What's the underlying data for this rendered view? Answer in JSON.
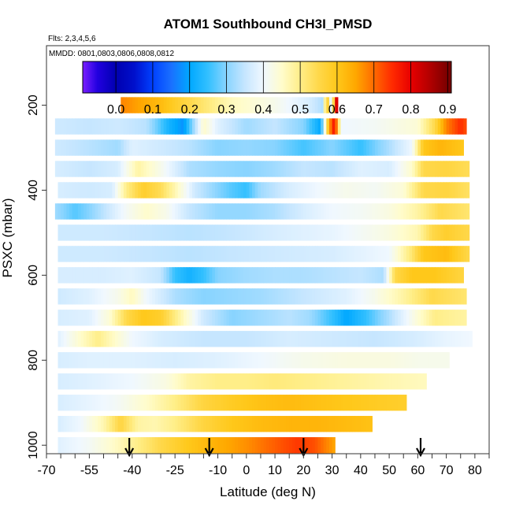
{
  "chart_data": {
    "type": "heatmap",
    "title": "ATOM1 Southbound CH3I_PMSD",
    "subtitle_flights": "Flts: 2,3,4,5,6",
    "subtitle_dates": "MMDD: 0801,0803,0806,0808,0812",
    "xlabel": "Latitude (deg N)",
    "ylabel": "PSXC (mbar)",
    "xlim": [
      -70,
      85
    ],
    "ylim": [
      1020,
      60
    ],
    "x_ticks": [
      -70,
      -55,
      -40,
      -25,
      -10,
      0,
      10,
      20,
      30,
      40,
      50,
      60,
      70,
      80
    ],
    "x_tick_labels": [
      "-70",
      "-55",
      "-40",
      "-25",
      "-10",
      "0",
      "10",
      "20",
      "30",
      "40",
      "50",
      "60",
      "70",
      "80"
    ],
    "y_ticks": [
      200,
      400,
      600,
      800,
      1000
    ],
    "y_tick_labels": [
      "200",
      "400",
      "600",
      "800",
      "1000"
    ],
    "colorbar": {
      "range": [
        -0.09,
        0.91
      ],
      "ticks": [
        0.0,
        0.1,
        0.2,
        0.3,
        0.4,
        0.5,
        0.6,
        0.7,
        0.8,
        0.9
      ],
      "tick_labels": [
        "0.0",
        "0.1",
        "0.2",
        "0.3",
        "0.4",
        "0.5",
        "0.6",
        "0.7",
        "0.8",
        "0.9"
      ],
      "stops": [
        [
          -0.09,
          "#7a1fff"
        ],
        [
          -0.05,
          "#2200e0"
        ],
        [
          0.0,
          "#0000b0"
        ],
        [
          0.05,
          "#0010cc"
        ],
        [
          0.1,
          "#0040ff"
        ],
        [
          0.15,
          "#1a70ff"
        ],
        [
          0.2,
          "#00a8ff"
        ],
        [
          0.25,
          "#33c0ff"
        ],
        [
          0.3,
          "#88d4ff"
        ],
        [
          0.35,
          "#c6e6ff"
        ],
        [
          0.4,
          "#f0f8ff"
        ],
        [
          0.45,
          "#fffccc"
        ],
        [
          0.5,
          "#ffee88"
        ],
        [
          0.55,
          "#ffd84a"
        ],
        [
          0.6,
          "#ffc81a"
        ],
        [
          0.65,
          "#ffa800"
        ],
        [
          0.7,
          "#ff6a00"
        ],
        [
          0.75,
          "#ff2a00"
        ],
        [
          0.8,
          "#e80000"
        ],
        [
          0.85,
          "#b40000"
        ],
        [
          0.9,
          "#7a0000"
        ]
      ]
    },
    "arrows_latitude": [
      -41,
      -13,
      20,
      61
    ],
    "bands": [
      {
        "p": 200,
        "x0": -44,
        "x1": 32,
        "pts": [
          [
            -44,
            0.68
          ],
          [
            -30,
            0.62
          ],
          [
            -20,
            0.55
          ],
          [
            -5,
            0.46
          ],
          [
            10,
            0.42
          ],
          [
            22,
            0.37
          ],
          [
            27,
            0.33
          ],
          [
            28,
            0.65
          ],
          [
            30,
            0.3
          ],
          [
            31,
            0.8
          ],
          [
            32,
            0.82
          ]
        ]
      },
      {
        "p": 250,
        "x0": -67,
        "x1": 77,
        "pts": [
          [
            -67,
            0.36
          ],
          [
            -55,
            0.35
          ],
          [
            -45,
            0.36
          ],
          [
            -35,
            0.34
          ],
          [
            -27,
            0.22
          ],
          [
            -22,
            0.18
          ],
          [
            -15,
            0.45
          ],
          [
            -10,
            0.38
          ],
          [
            0,
            0.32
          ],
          [
            10,
            0.35
          ],
          [
            20,
            0.3
          ],
          [
            26,
            0.2
          ],
          [
            29,
            0.65
          ],
          [
            31,
            0.8
          ],
          [
            33,
            0.4
          ],
          [
            45,
            0.41
          ],
          [
            60,
            0.44
          ],
          [
            66,
            0.55
          ],
          [
            70,
            0.68
          ],
          [
            75,
            0.75
          ],
          [
            77,
            0.72
          ]
        ]
      },
      {
        "p": 300,
        "x0": -67,
        "x1": 76,
        "pts": [
          [
            -67,
            0.36
          ],
          [
            -55,
            0.34
          ],
          [
            -45,
            0.32
          ],
          [
            -40,
            0.38
          ],
          [
            -30,
            0.36
          ],
          [
            -20,
            0.34
          ],
          [
            -10,
            0.3
          ],
          [
            0,
            0.31
          ],
          [
            10,
            0.3
          ],
          [
            20,
            0.26
          ],
          [
            30,
            0.3
          ],
          [
            40,
            0.25
          ],
          [
            50,
            0.33
          ],
          [
            58,
            0.4
          ],
          [
            62,
            0.6
          ],
          [
            68,
            0.63
          ],
          [
            76,
            0.6
          ]
        ]
      },
      {
        "p": 350,
        "x0": -67,
        "x1": 78,
        "pts": [
          [
            -67,
            0.37
          ],
          [
            -55,
            0.35
          ],
          [
            -45,
            0.37
          ],
          [
            -38,
            0.48
          ],
          [
            -30,
            0.42
          ],
          [
            -20,
            0.33
          ],
          [
            -10,
            0.31
          ],
          [
            0,
            0.3
          ],
          [
            10,
            0.32
          ],
          [
            20,
            0.35
          ],
          [
            30,
            0.34
          ],
          [
            40,
            0.38
          ],
          [
            50,
            0.37
          ],
          [
            58,
            0.45
          ],
          [
            62,
            0.55
          ],
          [
            70,
            0.56
          ],
          [
            78,
            0.54
          ]
        ]
      },
      {
        "p": 400,
        "x0": -66,
        "x1": 78,
        "pts": [
          [
            -66,
            0.37
          ],
          [
            -55,
            0.36
          ],
          [
            -47,
            0.37
          ],
          [
            -42,
            0.5
          ],
          [
            -36,
            0.58
          ],
          [
            -30,
            0.54
          ],
          [
            -25,
            0.47
          ],
          [
            -18,
            0.36
          ],
          [
            -10,
            0.3
          ],
          [
            -5,
            0.27
          ],
          [
            0,
            0.25
          ],
          [
            5,
            0.32
          ],
          [
            15,
            0.37
          ],
          [
            25,
            0.4
          ],
          [
            35,
            0.42
          ],
          [
            45,
            0.41
          ],
          [
            55,
            0.44
          ],
          [
            62,
            0.55
          ],
          [
            70,
            0.56
          ],
          [
            78,
            0.53
          ]
        ]
      },
      {
        "p": 450,
        "x0": -67,
        "x1": 78,
        "pts": [
          [
            -67,
            0.32
          ],
          [
            -60,
            0.27
          ],
          [
            -55,
            0.3
          ],
          [
            -48,
            0.36
          ],
          [
            -42,
            0.41
          ],
          [
            -35,
            0.45
          ],
          [
            -28,
            0.42
          ],
          [
            -20,
            0.35
          ],
          [
            -10,
            0.31
          ],
          [
            0,
            0.31
          ],
          [
            10,
            0.33
          ],
          [
            20,
            0.37
          ],
          [
            30,
            0.4
          ],
          [
            40,
            0.41
          ],
          [
            50,
            0.43
          ],
          [
            60,
            0.48
          ],
          [
            68,
            0.55
          ],
          [
            78,
            0.52
          ]
        ]
      },
      {
        "p": 500,
        "x0": -66,
        "x1": 78,
        "pts": [
          [
            -66,
            0.36
          ],
          [
            -50,
            0.36
          ],
          [
            -35,
            0.35
          ],
          [
            -20,
            0.34
          ],
          [
            -5,
            0.35
          ],
          [
            10,
            0.37
          ],
          [
            30,
            0.39
          ],
          [
            50,
            0.43
          ],
          [
            60,
            0.47
          ],
          [
            65,
            0.55
          ],
          [
            70,
            0.58
          ],
          [
            78,
            0.55
          ]
        ]
      },
      {
        "p": 550,
        "x0": -66,
        "x1": 78,
        "pts": [
          [
            -66,
            0.36
          ],
          [
            -50,
            0.36
          ],
          [
            -35,
            0.35
          ],
          [
            -20,
            0.34
          ],
          [
            -5,
            0.35
          ],
          [
            10,
            0.36
          ],
          [
            30,
            0.37
          ],
          [
            50,
            0.4
          ],
          [
            58,
            0.52
          ],
          [
            62,
            0.6
          ],
          [
            70,
            0.62
          ],
          [
            78,
            0.55
          ]
        ]
      },
      {
        "p": 600,
        "x0": -66,
        "x1": 76,
        "pts": [
          [
            -66,
            0.37
          ],
          [
            -50,
            0.37
          ],
          [
            -40,
            0.38
          ],
          [
            -30,
            0.35
          ],
          [
            -25,
            0.25
          ],
          [
            -20,
            0.22
          ],
          [
            -15,
            0.25
          ],
          [
            -10,
            0.3
          ],
          [
            0,
            0.32
          ],
          [
            10,
            0.33
          ],
          [
            20,
            0.33
          ],
          [
            30,
            0.34
          ],
          [
            40,
            0.35
          ],
          [
            48,
            0.33
          ],
          [
            52,
            0.55
          ],
          [
            58,
            0.6
          ],
          [
            66,
            0.6
          ],
          [
            76,
            0.56
          ]
        ]
      },
      {
        "p": 650,
        "x0": -66,
        "x1": 77,
        "pts": [
          [
            -66,
            0.36
          ],
          [
            -55,
            0.38
          ],
          [
            -45,
            0.42
          ],
          [
            -40,
            0.46
          ],
          [
            -35,
            0.4
          ],
          [
            -25,
            0.33
          ],
          [
            -15,
            0.3
          ],
          [
            -5,
            0.31
          ],
          [
            5,
            0.32
          ],
          [
            20,
            0.35
          ],
          [
            35,
            0.38
          ],
          [
            45,
            0.42
          ],
          [
            55,
            0.48
          ],
          [
            65,
            0.55
          ],
          [
            77,
            0.52
          ]
        ]
      },
      {
        "p": 700,
        "x0": -66,
        "x1": 77,
        "pts": [
          [
            -66,
            0.37
          ],
          [
            -55,
            0.38
          ],
          [
            -48,
            0.44
          ],
          [
            -42,
            0.55
          ],
          [
            -36,
            0.6
          ],
          [
            -30,
            0.58
          ],
          [
            -22,
            0.46
          ],
          [
            -15,
            0.36
          ],
          [
            -5,
            0.3
          ],
          [
            5,
            0.32
          ],
          [
            15,
            0.34
          ],
          [
            22,
            0.32
          ],
          [
            30,
            0.25
          ],
          [
            35,
            0.2
          ],
          [
            42,
            0.25
          ],
          [
            50,
            0.33
          ],
          [
            58,
            0.42
          ],
          [
            66,
            0.5
          ],
          [
            77,
            0.48
          ]
        ]
      },
      {
        "p": 750,
        "x0": -66,
        "x1": 79,
        "pts": [
          [
            -66,
            0.38
          ],
          [
            -58,
            0.45
          ],
          [
            -52,
            0.5
          ],
          [
            -46,
            0.45
          ],
          [
            -40,
            0.4
          ],
          [
            -30,
            0.37
          ],
          [
            -15,
            0.35
          ],
          [
            0,
            0.35
          ],
          [
            15,
            0.37
          ],
          [
            30,
            0.36
          ],
          [
            45,
            0.35
          ],
          [
            60,
            0.37
          ],
          [
            70,
            0.39
          ],
          [
            79,
            0.4
          ]
        ]
      },
      {
        "p": 800,
        "x0": -66,
        "x1": 71,
        "pts": [
          [
            -66,
            0.37
          ],
          [
            -55,
            0.38
          ],
          [
            -40,
            0.38
          ],
          [
            -25,
            0.37
          ],
          [
            -10,
            0.38
          ],
          [
            5,
            0.4
          ],
          [
            20,
            0.42
          ],
          [
            35,
            0.43
          ],
          [
            50,
            0.43
          ],
          [
            60,
            0.42
          ],
          [
            71,
            0.42
          ]
        ]
      },
      {
        "p": 850,
        "x0": -66,
        "x1": 63,
        "pts": [
          [
            -66,
            0.37
          ],
          [
            -55,
            0.38
          ],
          [
            -40,
            0.4
          ],
          [
            -28,
            0.43
          ],
          [
            -20,
            0.48
          ],
          [
            -10,
            0.5
          ],
          [
            0,
            0.5
          ],
          [
            10,
            0.51
          ],
          [
            20,
            0.5
          ],
          [
            30,
            0.49
          ],
          [
            40,
            0.48
          ],
          [
            50,
            0.47
          ],
          [
            63,
            0.46
          ]
        ]
      },
      {
        "p": 900,
        "x0": -66,
        "x1": 56,
        "pts": [
          [
            -66,
            0.37
          ],
          [
            -55,
            0.39
          ],
          [
            -45,
            0.41
          ],
          [
            -35,
            0.45
          ],
          [
            -25,
            0.5
          ],
          [
            -15,
            0.56
          ],
          [
            -5,
            0.59
          ],
          [
            5,
            0.61
          ],
          [
            15,
            0.62
          ],
          [
            25,
            0.61
          ],
          [
            35,
            0.6
          ],
          [
            45,
            0.59
          ],
          [
            56,
            0.58
          ]
        ]
      },
      {
        "p": 950,
        "x0": -66,
        "x1": 44,
        "pts": [
          [
            -66,
            0.37
          ],
          [
            -58,
            0.4
          ],
          [
            -50,
            0.47
          ],
          [
            -44,
            0.56
          ],
          [
            -38,
            0.48
          ],
          [
            -32,
            0.47
          ],
          [
            -25,
            0.5
          ],
          [
            -15,
            0.56
          ],
          [
            -5,
            0.6
          ],
          [
            5,
            0.62
          ],
          [
            15,
            0.63
          ],
          [
            25,
            0.63
          ],
          [
            35,
            0.62
          ],
          [
            44,
            0.61
          ]
        ]
      },
      {
        "p": 1000,
        "x0": -66,
        "x1": 31,
        "pts": [
          [
            -66,
            0.38
          ],
          [
            -55,
            0.41
          ],
          [
            -45,
            0.46
          ],
          [
            -38,
            0.5
          ],
          [
            -30,
            0.55
          ],
          [
            -20,
            0.6
          ],
          [
            -10,
            0.64
          ],
          [
            0,
            0.67
          ],
          [
            10,
            0.71
          ],
          [
            18,
            0.74
          ],
          [
            24,
            0.72
          ],
          [
            31,
            0.65
          ]
        ]
      }
    ]
  }
}
